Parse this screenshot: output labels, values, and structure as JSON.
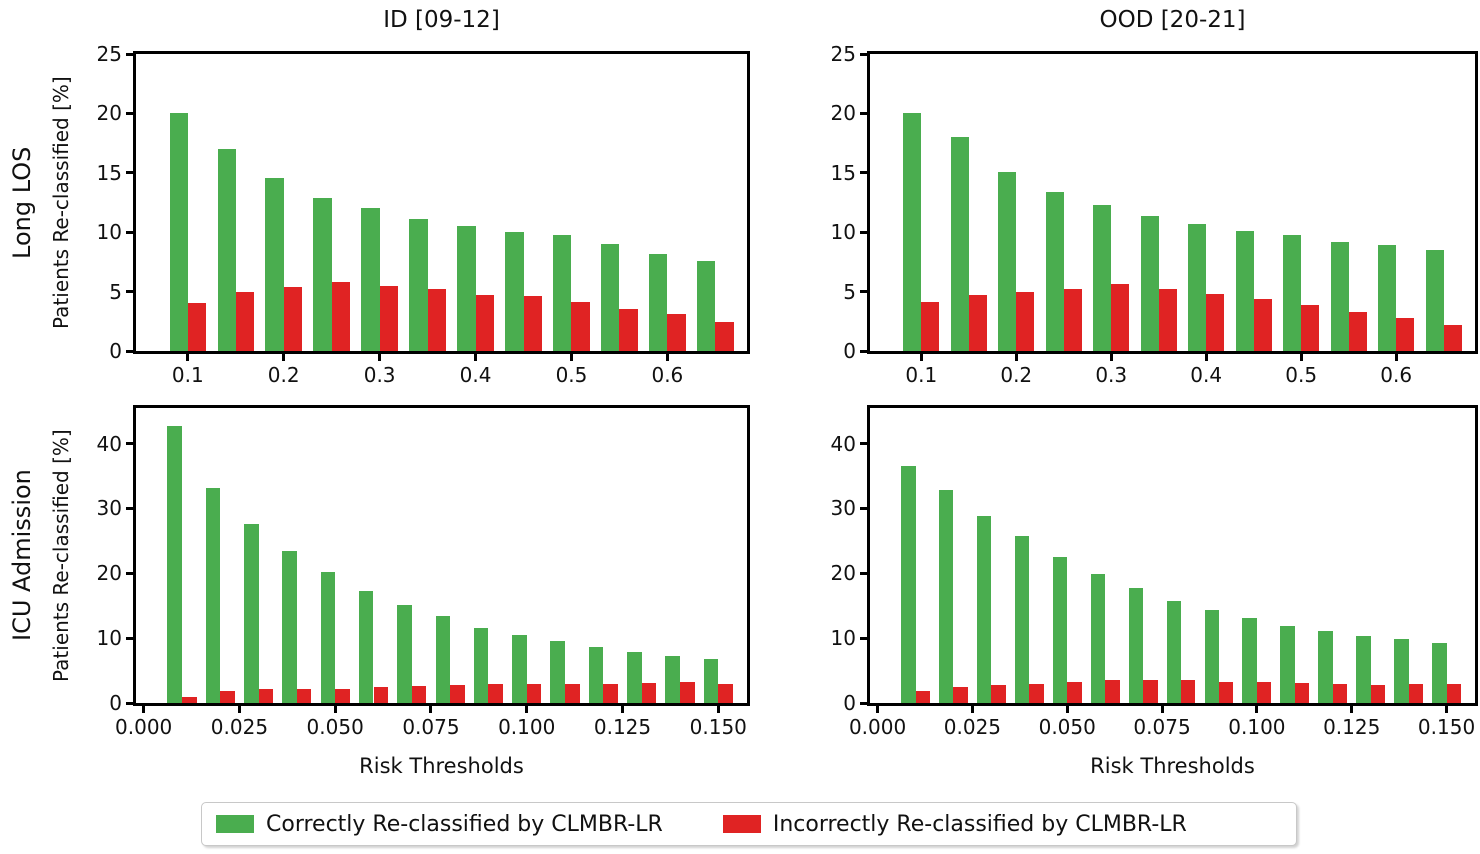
{
  "figure": {
    "background": "#ffffff"
  },
  "colors": {
    "green": "#4aad4f",
    "red": "#e02323",
    "axis": "#000000",
    "text": "#111111",
    "legend_border": "#c8c8c8"
  },
  "columns": [
    {
      "title": "ID [09-12]"
    },
    {
      "title": "OOD [20-21]"
    }
  ],
  "rows": [
    {
      "label": "Long LOS"
    },
    {
      "label": "ICU Admission"
    }
  ],
  "axes": {
    "ylabel": "Patients Re-classified [%]",
    "xlabel": "Risk Thresholds"
  },
  "legend": {
    "items": [
      {
        "label": "Correctly Re-classified by CLMBR-LR",
        "color_key": "green"
      },
      {
        "label": "Incorrectly Re-classified by CLMBR-LR",
        "color_key": "red"
      }
    ]
  },
  "chart_data": [
    {
      "id": "plot-tl",
      "type": "bar",
      "row": "Long LOS",
      "column": "ID [09-12]",
      "xlim": [
        0.046,
        0.683
      ],
      "ylim": [
        0,
        25
      ],
      "bar_width": 0.019,
      "x_centers": [
        0.1,
        0.15,
        0.2,
        0.25,
        0.3,
        0.35,
        0.4,
        0.45,
        0.5,
        0.55,
        0.6,
        0.65
      ],
      "series": [
        {
          "name": "Correctly Re-classified by CLMBR-LR",
          "color_key": "green",
          "values": [
            20.0,
            17.0,
            14.6,
            12.9,
            12.0,
            11.1,
            10.5,
            10.0,
            9.8,
            9.0,
            8.2,
            7.6
          ]
        },
        {
          "name": "Incorrectly Re-classified by CLMBR-LR",
          "color_key": "red",
          "values": [
            4.0,
            5.0,
            5.4,
            5.8,
            5.5,
            5.2,
            4.7,
            4.6,
            4.1,
            3.5,
            3.1,
            2.4
          ]
        }
      ],
      "xticks": {
        "values": [
          0.1,
          0.2,
          0.3,
          0.4,
          0.5,
          0.6
        ],
        "labels": [
          "0.1",
          "0.2",
          "0.3",
          "0.4",
          "0.5",
          "0.6"
        ]
      },
      "yticks": {
        "values": [
          0,
          5,
          10,
          15,
          20,
          25
        ],
        "labels": [
          "0",
          "5",
          "10",
          "15",
          "20",
          "25"
        ]
      }
    },
    {
      "id": "plot-tr",
      "type": "bar",
      "row": "Long LOS",
      "column": "OOD [20-21]",
      "xlim": [
        0.046,
        0.683
      ],
      "ylim": [
        0,
        25
      ],
      "bar_width": 0.019,
      "x_centers": [
        0.1,
        0.15,
        0.2,
        0.25,
        0.3,
        0.35,
        0.4,
        0.45,
        0.5,
        0.55,
        0.6,
        0.65
      ],
      "series": [
        {
          "name": "Correctly Re-classified by CLMBR-LR",
          "color_key": "green",
          "values": [
            20.0,
            18.0,
            15.1,
            13.4,
            12.3,
            11.4,
            10.7,
            10.1,
            9.8,
            9.2,
            8.9,
            8.5
          ]
        },
        {
          "name": "Incorrectly Re-classified by CLMBR-LR",
          "color_key": "red",
          "values": [
            4.1,
            4.7,
            5.0,
            5.2,
            5.6,
            5.2,
            4.8,
            4.4,
            3.9,
            3.3,
            2.8,
            2.2
          ]
        }
      ],
      "xticks": {
        "values": [
          0.1,
          0.2,
          0.3,
          0.4,
          0.5,
          0.6
        ],
        "labels": [
          "0.1",
          "0.2",
          "0.3",
          "0.4",
          "0.5",
          "0.6"
        ]
      },
      "yticks": {
        "values": [
          0,
          5,
          10,
          15,
          20,
          25
        ],
        "labels": [
          "0",
          "5",
          "10",
          "15",
          "20",
          "25"
        ]
      }
    },
    {
      "id": "plot-bl",
      "type": "bar",
      "row": "ICU Admission",
      "column": "ID [09-12]",
      "xlim": [
        -0.002,
        0.1575
      ],
      "ylim": [
        0,
        45.5
      ],
      "bar_width": 0.0038,
      "x_centers": [
        0.01,
        0.02,
        0.03,
        0.04,
        0.05,
        0.06,
        0.07,
        0.08,
        0.09,
        0.1,
        0.11,
        0.12,
        0.13,
        0.14,
        0.15
      ],
      "series": [
        {
          "name": "Correctly Re-classified by CLMBR-LR",
          "color_key": "green",
          "values": [
            42.7,
            33.1,
            27.6,
            23.4,
            20.2,
            17.3,
            15.1,
            13.4,
            11.6,
            10.5,
            9.5,
            8.7,
            7.8,
            7.2,
            6.8
          ]
        },
        {
          "name": "Incorrectly Re-classified by CLMBR-LR",
          "color_key": "red",
          "values": [
            1.0,
            1.9,
            2.2,
            2.1,
            2.2,
            2.4,
            2.6,
            2.8,
            3.0,
            3.0,
            3.0,
            3.0,
            3.1,
            3.2,
            3.0
          ]
        }
      ],
      "xticks": {
        "values": [
          0.0,
          0.025,
          0.05,
          0.075,
          0.1,
          0.125,
          0.15
        ],
        "labels": [
          "0.000",
          "0.025",
          "0.050",
          "0.075",
          "0.100",
          "0.125",
          "0.150"
        ]
      },
      "yticks": {
        "values": [
          0,
          10,
          20,
          30,
          40
        ],
        "labels": [
          "0",
          "10",
          "20",
          "30",
          "40"
        ]
      }
    },
    {
      "id": "plot-br",
      "type": "bar",
      "row": "ICU Admission",
      "column": "OOD [20-21]",
      "xlim": [
        -0.002,
        0.1575
      ],
      "ylim": [
        0,
        45.5
      ],
      "bar_width": 0.0038,
      "x_centers": [
        0.01,
        0.02,
        0.03,
        0.04,
        0.05,
        0.06,
        0.07,
        0.08,
        0.09,
        0.1,
        0.11,
        0.12,
        0.13,
        0.14,
        0.15
      ],
      "series": [
        {
          "name": "Correctly Re-classified by CLMBR-LR",
          "color_key": "green",
          "values": [
            36.6,
            32.8,
            28.9,
            25.7,
            22.5,
            19.9,
            17.8,
            15.7,
            14.4,
            13.1,
            11.9,
            11.1,
            10.4,
            9.8,
            9.2
          ]
        },
        {
          "name": "Incorrectly Re-classified by CLMBR-LR",
          "color_key": "red",
          "values": [
            1.8,
            2.4,
            2.8,
            3.0,
            3.3,
            3.5,
            3.5,
            3.5,
            3.3,
            3.2,
            3.1,
            3.0,
            2.8,
            3.0,
            2.9
          ]
        }
      ],
      "xticks": {
        "values": [
          0.0,
          0.025,
          0.05,
          0.075,
          0.1,
          0.125,
          0.15
        ],
        "labels": [
          "0.000",
          "0.025",
          "0.050",
          "0.075",
          "0.100",
          "0.125",
          "0.150"
        ]
      },
      "yticks": {
        "values": [
          0,
          10,
          20,
          30,
          40
        ],
        "labels": [
          "0",
          "10",
          "20",
          "30",
          "40"
        ]
      }
    }
  ]
}
